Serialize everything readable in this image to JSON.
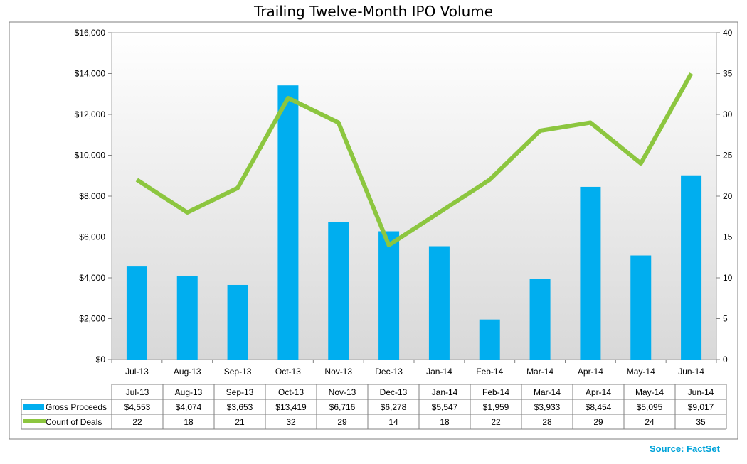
{
  "chart_data": {
    "type": "bar",
    "title": "Trailing Twelve-Month IPO Volume",
    "categories": [
      "Jul-13",
      "Aug-13",
      "Sep-13",
      "Oct-13",
      "Nov-13",
      "Dec-13",
      "Jan-14",
      "Feb-14",
      "Mar-14",
      "Apr-14",
      "May-14",
      "Jun-14"
    ],
    "series": [
      {
        "name": "Gross Proceeds",
        "type": "bar",
        "axis": "left",
        "color": "#00aeef",
        "values": [
          4553,
          4074,
          3653,
          13419,
          6716,
          6278,
          5547,
          1959,
          3933,
          8454,
          5095,
          9017
        ],
        "labels": [
          "$4,553",
          "$4,074",
          "$3,653",
          "$13,419",
          "$6,716",
          "$6,278",
          "$5,547",
          "$1,959",
          "$3,933",
          "$8,454",
          "$5,095",
          "$9,017"
        ]
      },
      {
        "name": "Count of Deals",
        "type": "line",
        "axis": "right",
        "color": "#8cc63f",
        "values": [
          22,
          18,
          21,
          32,
          29,
          14,
          18,
          22,
          28,
          29,
          24,
          35
        ],
        "labels": [
          "22",
          "18",
          "21",
          "32",
          "29",
          "14",
          "18",
          "22",
          "28",
          "29",
          "24",
          "35"
        ]
      }
    ],
    "y_left": {
      "min": 0,
      "max": 16000,
      "ticks": [
        0,
        2000,
        4000,
        6000,
        8000,
        10000,
        12000,
        14000,
        16000
      ],
      "tick_labels": [
        "$0",
        "$2,000",
        "$4,000",
        "$6,000",
        "$8,000",
        "$10,000",
        "$12,000",
        "$14,000",
        "$16,000"
      ]
    },
    "y_right": {
      "min": 0,
      "max": 40,
      "ticks": [
        0,
        5,
        10,
        15,
        20,
        25,
        30,
        35,
        40
      ],
      "tick_labels": [
        "0",
        "5",
        "10",
        "15",
        "20",
        "25",
        "30",
        "35",
        "40"
      ]
    },
    "grid": false,
    "legend": "data-table"
  },
  "source": "Source: FactSet"
}
